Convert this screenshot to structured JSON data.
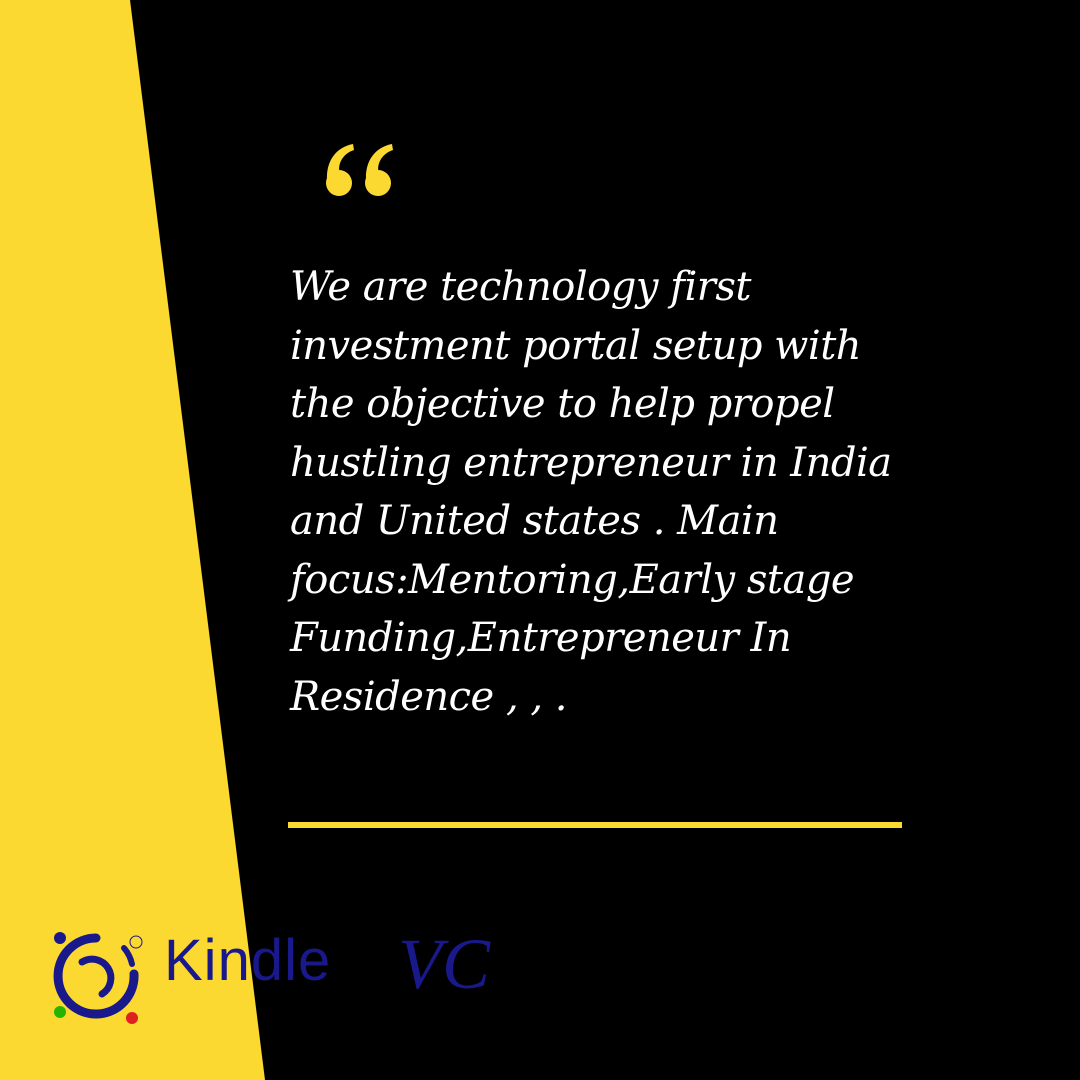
{
  "colors": {
    "background": "#000000",
    "accent_yellow": "#fcd930",
    "text": "#ffffff",
    "logo_blue": "#19198c"
  },
  "quote": {
    "mark": "quote-open-icon",
    "text": "We are technology first\ninvestment portal setup with\nthe objective to help propel\nhustling entrepreneur in India\nand United states . Main\nfocus:Mentoring,Early stage\nFunding,Entrepreneur In\nResidence , , ."
  },
  "logo": {
    "icon": "kindle-vc-logo-icon",
    "word1": "Kindle",
    "word2": "VC"
  }
}
